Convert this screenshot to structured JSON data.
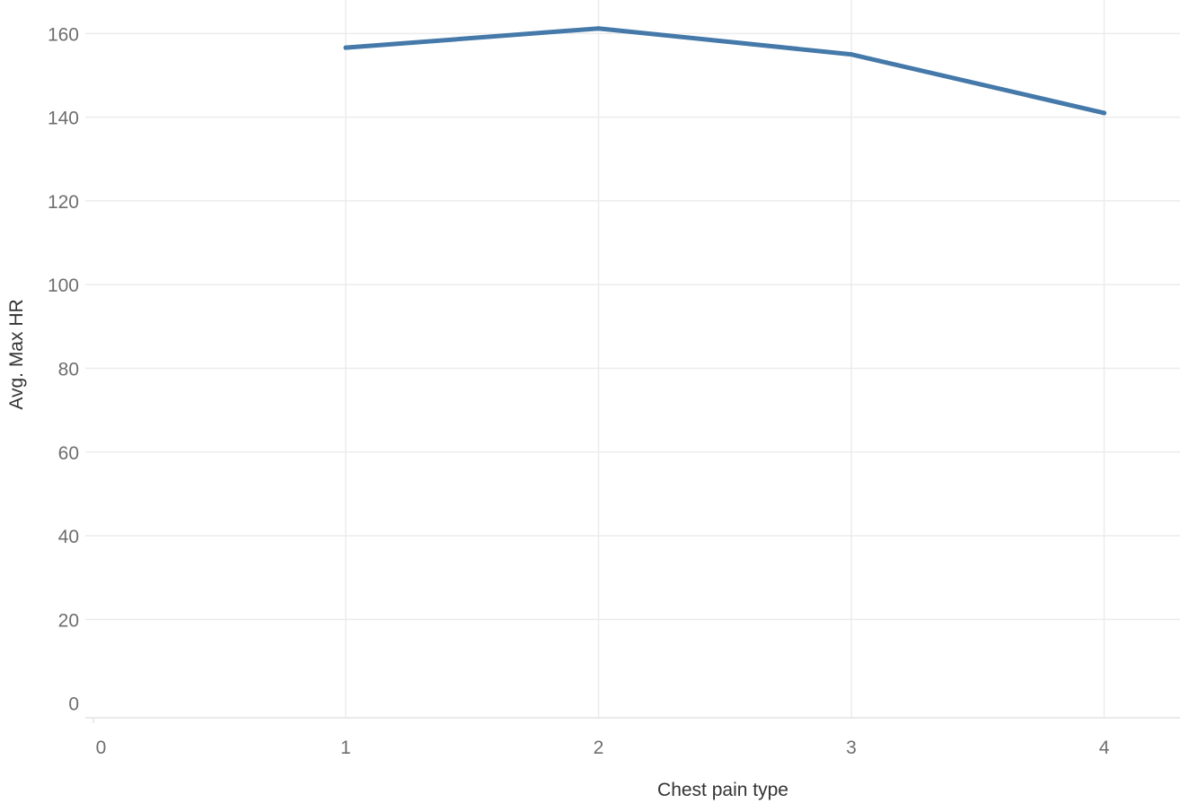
{
  "chart_data": {
    "type": "line",
    "title": "",
    "xlabel": "Chest pain type",
    "ylabel": "Avg. Max HR",
    "x_ticks": [
      "0",
      "1",
      "2",
      "3",
      "4"
    ],
    "y_ticks": [
      "0",
      "20",
      "40",
      "60",
      "80",
      "100",
      "120",
      "140",
      "160"
    ],
    "xlim": [
      -0.03,
      4.3
    ],
    "ylim": [
      -3.5,
      168
    ],
    "grid": true,
    "legend": "none",
    "series": [
      {
        "x": [
          1,
          2,
          3,
          4
        ],
        "y": [
          156.6,
          161.2,
          155.0,
          141.0
        ],
        "color": "#4479a9"
      }
    ],
    "colors": {
      "line": "#4479a9",
      "grid": "#ececec",
      "tick_text": "#6e6e6e",
      "axis_title": "#333333",
      "axis_line": "#e4e4e4"
    }
  }
}
